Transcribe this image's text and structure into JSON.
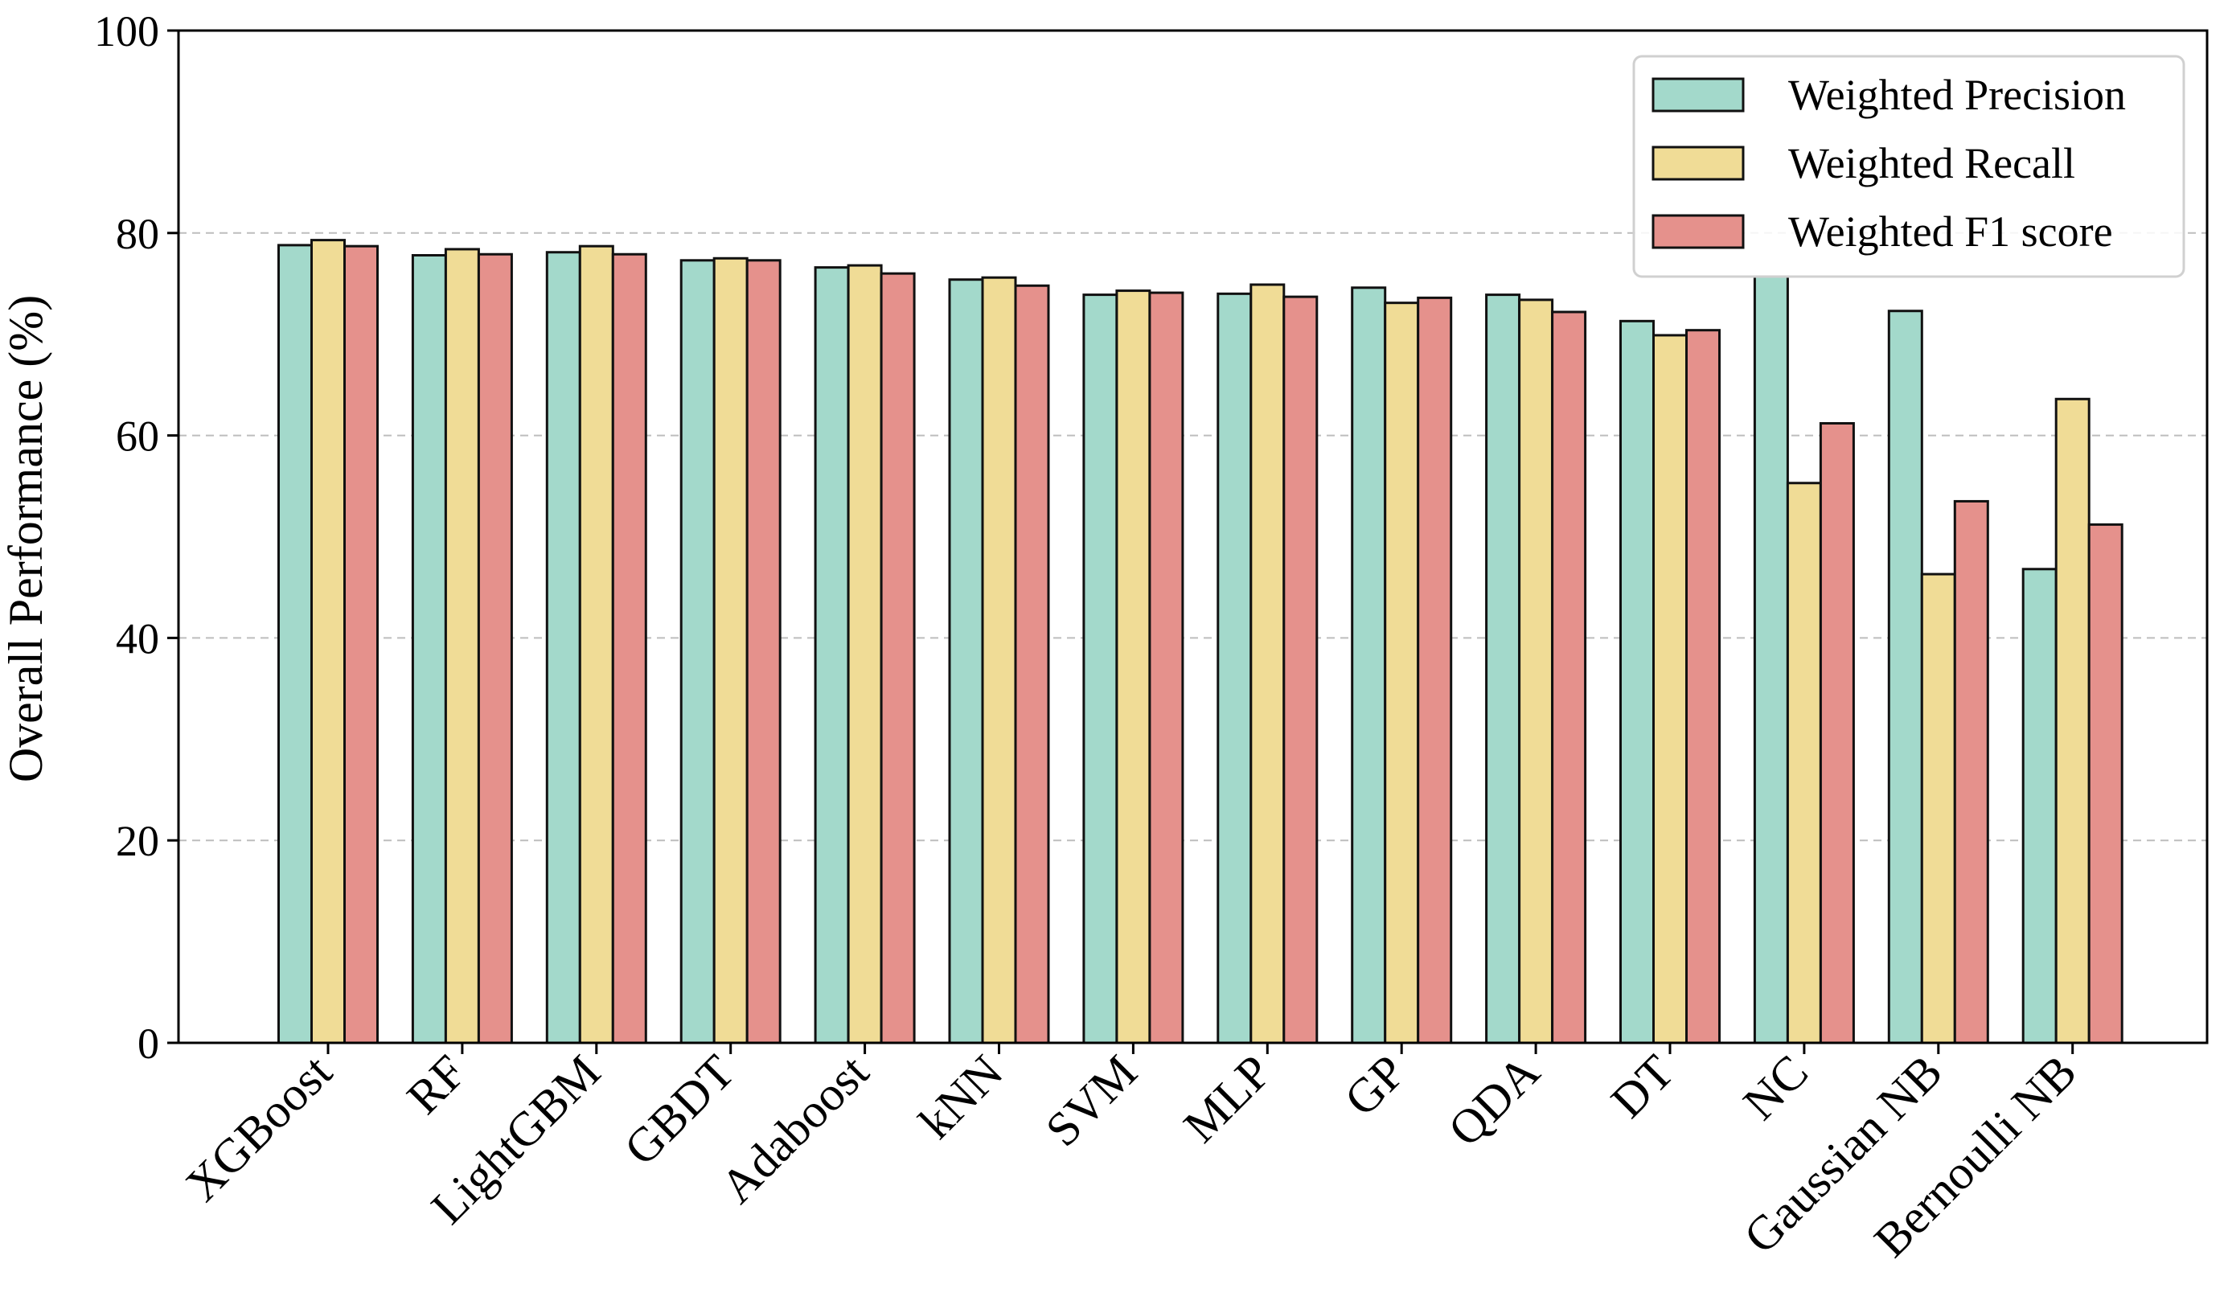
{
  "chart_data": {
    "type": "bar",
    "ylabel": "Overall Performance (%)",
    "xlabel": "",
    "ylim": [
      0,
      100
    ],
    "yticks": [
      0,
      20,
      40,
      60,
      80,
      100
    ],
    "grid": "y-dashed",
    "legend_position": "top-right",
    "categories": [
      "XGBoost",
      "RF",
      "LightGBM",
      "GBDT",
      "Adaboost",
      "kNN",
      "SVM",
      "MLP",
      "GP",
      "QDA",
      "DT",
      "NC",
      "Gaussian NB",
      "Bernoulli NB"
    ],
    "series": [
      {
        "name": "Weighted Precision",
        "color": "#a3d9cb",
        "values": [
          78.8,
          77.8,
          78.1,
          77.3,
          76.6,
          75.4,
          73.9,
          74.0,
          74.6,
          73.9,
          71.3,
          75.7,
          72.3,
          46.8
        ]
      },
      {
        "name": "Weighted Recall",
        "color": "#f0dc96",
        "values": [
          79.3,
          78.4,
          78.7,
          77.5,
          76.8,
          75.6,
          74.3,
          74.9,
          73.1,
          73.4,
          69.9,
          55.3,
          46.3,
          63.6
        ]
      },
      {
        "name": "Weighted F1 score",
        "color": "#e5918c",
        "values": [
          78.7,
          77.9,
          77.9,
          77.3,
          76.0,
          74.8,
          74.1,
          73.7,
          73.6,
          72.2,
          70.4,
          61.2,
          53.5,
          51.2
        ]
      }
    ]
  }
}
